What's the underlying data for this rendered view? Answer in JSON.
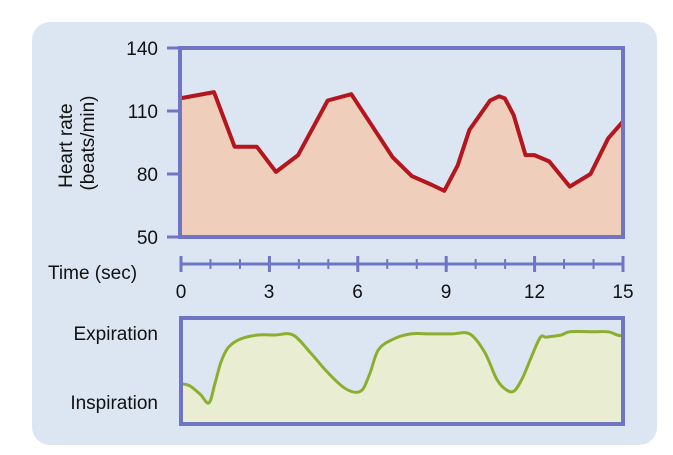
{
  "chart_data": [
    {
      "type": "area",
      "xlabel": "Time (sec)",
      "ylabel": [
        "Heart rate",
        "(beats/min)"
      ],
      "xlim": [
        0,
        15
      ],
      "ylim": [
        50,
        140
      ],
      "x_ticks": [
        0,
        3,
        6,
        9,
        12,
        15
      ],
      "x_minor_step": 1,
      "y_ticks": [
        140,
        110,
        80,
        50
      ],
      "grid": false,
      "legend": "none",
      "x": [
        0,
        1.15,
        1.85,
        2.6,
        3.25,
        4.0,
        4.5,
        5.0,
        5.8,
        6.5,
        7.2,
        7.85,
        8.5,
        8.95,
        9.4,
        9.8,
        10.5,
        10.8,
        11.0,
        11.3,
        11.7,
        12.0,
        12.5,
        13.2,
        13.9,
        14.5,
        15.0
      ],
      "y": [
        116,
        119,
        93,
        93,
        81,
        89,
        102,
        115,
        118,
        103,
        88,
        79,
        75,
        72,
        84,
        101,
        115,
        117,
        116,
        108,
        89,
        89,
        86,
        74,
        80,
        97,
        105
      ],
      "colors": {
        "line": "#b3161d",
        "fill": "#efcebc"
      }
    },
    {
      "type": "area",
      "y_categories": [
        "Expiration",
        "Inspiration"
      ],
      "xlim": [
        0,
        15
      ],
      "ylim": [
        0,
        1
      ],
      "grid": false,
      "legend": "none",
      "x": [
        0,
        0.3,
        0.65,
        0.95,
        1.15,
        1.35,
        1.6,
        2.0,
        2.6,
        3.2,
        3.8,
        4.4,
        5.0,
        5.6,
        6.1,
        6.4,
        6.7,
        7.2,
        7.8,
        8.5,
        9.2,
        9.8,
        10.3,
        10.7,
        11.0,
        11.3,
        11.6,
        11.9,
        12.2,
        12.4,
        12.9,
        13.2,
        14.0,
        14.5,
        14.8,
        15.0
      ],
      "y": [
        0.38,
        0.36,
        0.28,
        0.2,
        0.38,
        0.58,
        0.72,
        0.8,
        0.84,
        0.84,
        0.84,
        0.67,
        0.48,
        0.33,
        0.31,
        0.47,
        0.7,
        0.8,
        0.85,
        0.85,
        0.85,
        0.85,
        0.68,
        0.43,
        0.33,
        0.31,
        0.44,
        0.64,
        0.82,
        0.82,
        0.84,
        0.87,
        0.87,
        0.87,
        0.84,
        0.83
      ],
      "colors": {
        "line": "#8cae2f",
        "fill": "#e9edd2"
      }
    }
  ],
  "colors": {
    "panel_background": "#dce6f3",
    "frame": "#6f75c2",
    "axis": "#6f75c2"
  }
}
